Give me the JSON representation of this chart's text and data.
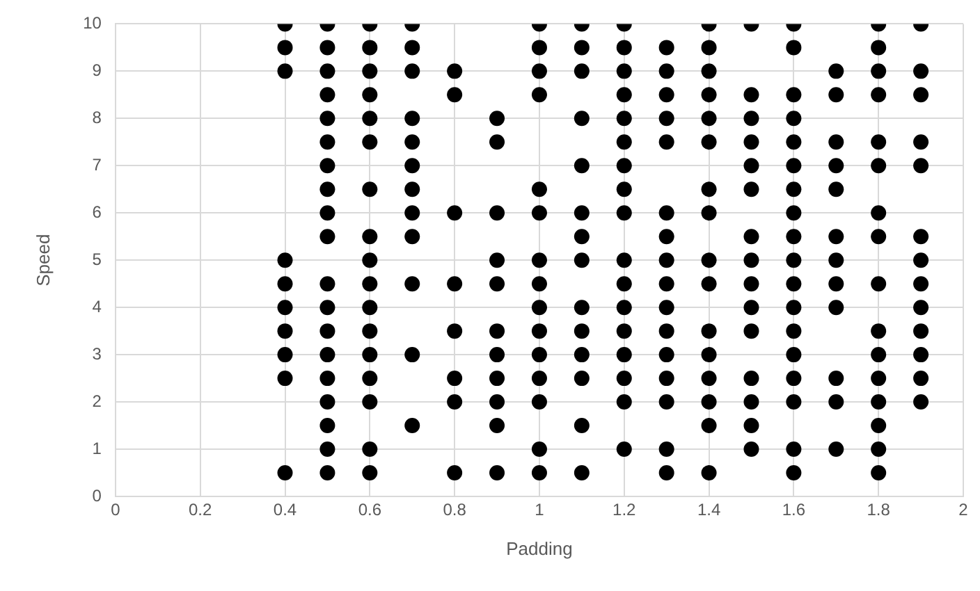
{
  "chart_data": {
    "type": "scatter",
    "xlabel": "Padding",
    "ylabel": "Speed",
    "xlim": [
      0,
      2
    ],
    "xticks": [
      0,
      0.2,
      0.4,
      0.6,
      0.8,
      1,
      1.2,
      1.4,
      1.6,
      1.8,
      2
    ],
    "ylim": [
      0,
      10
    ],
    "yticks": [
      0,
      1,
      2,
      3,
      4,
      5,
      6,
      7,
      8,
      9,
      10
    ],
    "grid": true,
    "legend": false,
    "marker": "circle",
    "series": [
      {
        "color": "#000000",
        "x": [
          0.4,
          0.4,
          0.4,
          0.4,
          0.4,
          0.4,
          0.4,
          0.4,
          0.4,
          0.4,
          0.5,
          0.5,
          0.5,
          0.5,
          0.5,
          0.5,
          0.5,
          0.5,
          0.5,
          0.5,
          0.5,
          0.5,
          0.5,
          0.5,
          0.5,
          0.5,
          0.5,
          0.5,
          0.5,
          0.6,
          0.6,
          0.6,
          0.6,
          0.6,
          0.6,
          0.6,
          0.6,
          0.6,
          0.6,
          0.6,
          0.6,
          0.6,
          0.6,
          0.6,
          0.6,
          0.6,
          0.7,
          0.7,
          0.7,
          0.7,
          0.7,
          0.7,
          0.7,
          0.7,
          0.7,
          0.7,
          0.7,
          0.7,
          0.8,
          0.8,
          0.8,
          0.8,
          0.8,
          0.8,
          0.8,
          0.8,
          0.9,
          0.9,
          0.9,
          0.9,
          0.9,
          0.9,
          0.9,
          0.9,
          0.9,
          0.9,
          0.9,
          1,
          1,
          1,
          1,
          1,
          1,
          1,
          1,
          1,
          1,
          1,
          1,
          1,
          1,
          1,
          1.1,
          1.1,
          1.1,
          1.1,
          1.1,
          1.1,
          1.1,
          1.1,
          1.1,
          1.1,
          1.1,
          1.1,
          1.1,
          1.1,
          1.2,
          1.2,
          1.2,
          1.2,
          1.2,
          1.2,
          1.2,
          1.2,
          1.2,
          1.2,
          1.2,
          1.2,
          1.2,
          1.2,
          1.2,
          1.2,
          1.2,
          1.3,
          1.3,
          1.3,
          1.3,
          1.3,
          1.3,
          1.3,
          1.3,
          1.3,
          1.3,
          1.3,
          1.3,
          1.3,
          1.3,
          1.3,
          1.3,
          1.4,
          1.4,
          1.4,
          1.4,
          1.4,
          1.4,
          1.4,
          1.4,
          1.4,
          1.4,
          1.4,
          1.4,
          1.4,
          1.4,
          1.4,
          1.4,
          1.5,
          1.5,
          1.5,
          1.5,
          1.5,
          1.5,
          1.5,
          1.5,
          1.5,
          1.5,
          1.5,
          1.5,
          1.5,
          1.5,
          1.5,
          1.6,
          1.6,
          1.6,
          1.6,
          1.6,
          1.6,
          1.6,
          1.6,
          1.6,
          1.6,
          1.6,
          1.6,
          1.6,
          1.6,
          1.6,
          1.6,
          1.6,
          1.6,
          1.7,
          1.7,
          1.7,
          1.7,
          1.7,
          1.7,
          1.7,
          1.7,
          1.7,
          1.7,
          1.7,
          1.7,
          1.8,
          1.8,
          1.8,
          1.8,
          1.8,
          1.8,
          1.8,
          1.8,
          1.8,
          1.8,
          1.8,
          1.8,
          1.8,
          1.8,
          1.8,
          1.8,
          1.9,
          1.9,
          1.9,
          1.9,
          1.9,
          1.9,
          1.9,
          1.9,
          1.9,
          1.9,
          1.9,
          1.9,
          1.9
        ],
        "values": [
          10,
          9.5,
          9,
          5,
          4.5,
          4,
          3.5,
          3,
          2.5,
          0.5,
          10,
          9.5,
          9,
          8.5,
          8,
          7.5,
          7,
          6.5,
          6,
          5.5,
          4.5,
          4,
          3.5,
          3,
          2.5,
          2,
          1.5,
          1,
          0.5,
          10,
          9.5,
          9,
          8.5,
          8,
          7.5,
          6.5,
          5.5,
          5,
          4.5,
          4,
          3.5,
          3,
          2.5,
          2,
          1,
          0.5,
          10,
          9.5,
          9,
          8,
          7.5,
          7,
          6.5,
          6,
          5.5,
          4.5,
          3,
          1.5,
          9,
          8.5,
          6,
          4.5,
          3.5,
          2.5,
          2,
          0.5,
          8,
          7.5,
          6,
          5,
          4.5,
          3.5,
          3,
          2.5,
          2,
          1.5,
          0.5,
          10,
          9.5,
          9,
          8.5,
          6.5,
          6,
          5,
          4.5,
          4,
          3.5,
          3,
          2.5,
          2,
          1,
          0.5,
          10,
          9.5,
          9,
          8,
          7,
          6,
          5.5,
          5,
          4,
          3.5,
          3,
          2.5,
          1.5,
          0.5,
          10,
          9.5,
          9,
          8.5,
          8,
          7.5,
          7,
          6.5,
          6,
          5,
          4.5,
          4,
          3.5,
          3,
          2.5,
          2,
          1,
          9.5,
          9,
          8.5,
          8,
          7.5,
          6,
          5.5,
          5,
          4.5,
          4,
          3.5,
          3,
          2.5,
          2,
          1,
          0.5,
          10,
          9.5,
          9,
          8.5,
          8,
          7.5,
          6.5,
          6,
          5,
          4.5,
          3.5,
          3,
          2.5,
          2,
          1.5,
          0.5,
          10,
          8.5,
          8,
          7.5,
          7,
          6.5,
          5.5,
          5,
          4.5,
          4,
          3.5,
          2.5,
          2,
          1.5,
          1,
          10,
          9.5,
          8.5,
          8,
          7.5,
          7,
          6.5,
          6,
          5.5,
          5,
          4.5,
          4,
          3.5,
          3,
          2.5,
          2,
          1,
          0.5,
          9,
          8.5,
          7.5,
          7,
          6.5,
          5.5,
          5,
          4.5,
          4,
          2.5,
          2,
          1,
          10,
          9.5,
          9,
          8.5,
          7.5,
          7,
          6,
          5.5,
          4.5,
          3.5,
          3,
          2.5,
          2,
          1.5,
          1,
          0.5,
          10,
          9,
          8.5,
          7.5,
          7,
          5.5,
          5,
          4.5,
          4,
          3.5,
          3,
          2.5,
          2
        ]
      }
    ]
  }
}
